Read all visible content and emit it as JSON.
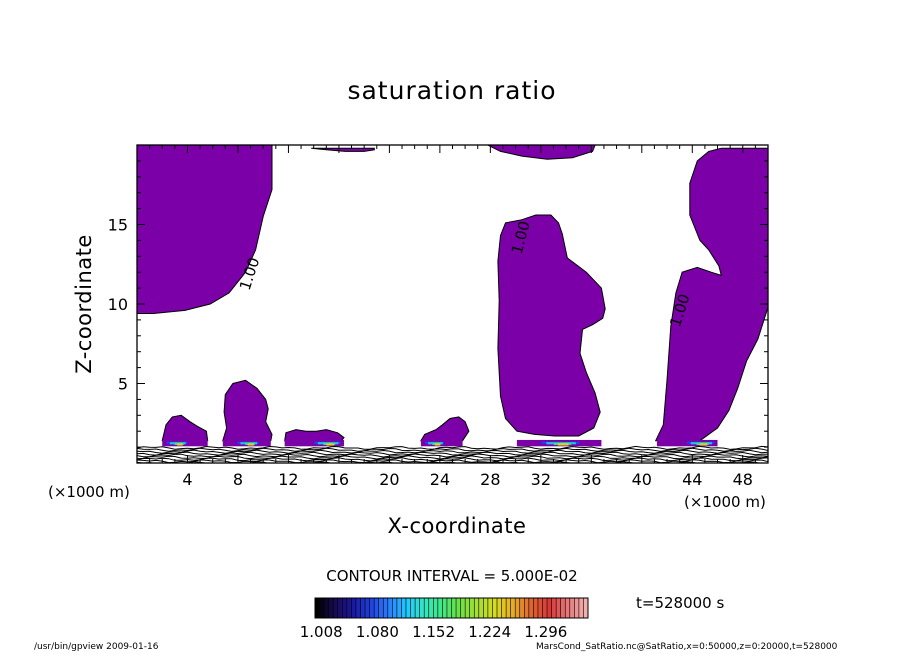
{
  "chart_data": {
    "type": "contour",
    "title": "saturation ratio",
    "xlabel": "X-coordinate",
    "ylabel": "Z-coordinate",
    "x_unit_label": "(×1000 m)",
    "x_range": [
      0,
      50
    ],
    "y_range": [
      0,
      20
    ],
    "x_ticks": [
      4,
      8,
      12,
      16,
      20,
      24,
      28,
      32,
      36,
      40,
      44,
      48
    ],
    "y_ticks": [
      5,
      10,
      15
    ],
    "contour_interval_text": "CONTOUR INTERVAL = 5.000E-02",
    "contour_labels": [
      "1.00"
    ],
    "fill_color": "#7b00a8",
    "saturated_regions": [
      {
        "name": "upper-left",
        "points": [
          [
            0,
            20
          ],
          [
            10.7,
            20
          ],
          [
            10.7,
            17.2
          ],
          [
            10.0,
            15.5
          ],
          [
            9.4,
            13.4
          ],
          [
            8.6,
            12.0
          ],
          [
            7.3,
            10.7
          ],
          [
            5.8,
            10.0
          ],
          [
            3.8,
            9.6
          ],
          [
            1.3,
            9.4
          ],
          [
            0,
            9.4
          ]
        ]
      },
      {
        "name": "central-column",
        "points": [
          [
            29.2,
            15.1
          ],
          [
            30.5,
            15.3
          ],
          [
            31.6,
            15.6
          ],
          [
            32.8,
            15.6
          ],
          [
            33.4,
            15.1
          ],
          [
            33.7,
            14.4
          ],
          [
            34.1,
            12.9
          ],
          [
            35.6,
            12.0
          ],
          [
            36.8,
            11.0
          ],
          [
            37.1,
            9.7
          ],
          [
            36.9,
            9.1
          ],
          [
            36.1,
            8.7
          ],
          [
            35.3,
            8.4
          ],
          [
            35.1,
            6.9
          ],
          [
            35.6,
            5.7
          ],
          [
            36.3,
            4.4
          ],
          [
            36.7,
            3.2
          ],
          [
            36.2,
            2.2
          ],
          [
            35.0,
            1.7
          ],
          [
            33.1,
            1.7
          ],
          [
            31.5,
            1.8
          ],
          [
            30.1,
            2.0
          ],
          [
            29.2,
            2.8
          ],
          [
            28.8,
            4.2
          ],
          [
            28.6,
            7.2
          ],
          [
            28.7,
            10.2
          ],
          [
            28.6,
            12.7
          ],
          [
            28.8,
            14.3
          ]
        ]
      },
      {
        "name": "right-column",
        "points": [
          [
            41.1,
            1.4
          ],
          [
            41.7,
            2.4
          ],
          [
            42.0,
            5.2
          ],
          [
            42.3,
            8.6
          ],
          [
            42.7,
            10.7
          ],
          [
            43.2,
            12.0
          ],
          [
            44.4,
            12.3
          ],
          [
            45.5,
            12.0
          ],
          [
            46.3,
            11.8
          ],
          [
            46.1,
            12.4
          ],
          [
            45.3,
            13.4
          ],
          [
            44.6,
            14.0
          ],
          [
            43.8,
            15.6
          ],
          [
            43.8,
            17.6
          ],
          [
            44.4,
            19.0
          ],
          [
            45.3,
            19.6
          ],
          [
            46.3,
            19.8
          ],
          [
            50,
            19.8
          ],
          [
            50,
            9.8
          ],
          [
            49.2,
            7.8
          ],
          [
            48.3,
            6.4
          ],
          [
            47.6,
            4.7
          ],
          [
            46.9,
            3.3
          ],
          [
            46.0,
            2.2
          ],
          [
            44.6,
            1.4
          ]
        ]
      },
      {
        "name": "bump-left",
        "points": [
          [
            2.0,
            1.4
          ],
          [
            2.3,
            2.4
          ],
          [
            2.8,
            2.9
          ],
          [
            3.5,
            3.0
          ],
          [
            4.2,
            2.6
          ],
          [
            4.8,
            2.3
          ],
          [
            5.5,
            2.0
          ],
          [
            5.6,
            1.4
          ]
        ]
      },
      {
        "name": "bubble-8",
        "points": [
          [
            6.8,
            1.4
          ],
          [
            7.1,
            2.2
          ],
          [
            6.9,
            3.2
          ],
          [
            7.0,
            4.3
          ],
          [
            7.6,
            5.0
          ],
          [
            8.6,
            5.2
          ],
          [
            9.5,
            4.7
          ],
          [
            10.2,
            4.0
          ],
          [
            10.4,
            3.4
          ],
          [
            10.2,
            2.6
          ],
          [
            10.7,
            1.8
          ],
          [
            10.6,
            1.4
          ]
        ]
      },
      {
        "name": "bump-12",
        "points": [
          [
            11.7,
            1.4
          ],
          [
            11.8,
            1.9
          ],
          [
            12.6,
            2.1
          ],
          [
            13.4,
            2.0
          ],
          [
            14.2,
            2.0
          ],
          [
            15.0,
            2.1
          ],
          [
            15.9,
            1.9
          ],
          [
            16.4,
            1.6
          ],
          [
            16.2,
            1.4
          ]
        ]
      },
      {
        "name": "bump-25",
        "points": [
          [
            22.5,
            1.4
          ],
          [
            22.8,
            1.8
          ],
          [
            23.7,
            2.1
          ],
          [
            24.2,
            2.4
          ],
          [
            24.8,
            2.8
          ],
          [
            25.5,
            2.9
          ],
          [
            26.0,
            2.6
          ],
          [
            26.3,
            2.0
          ],
          [
            25.8,
            1.4
          ]
        ]
      },
      {
        "name": "top-sliver-15",
        "points": [
          [
            13.8,
            19.8
          ],
          [
            15.0,
            19.7
          ],
          [
            16.5,
            19.6
          ],
          [
            18.0,
            19.6
          ],
          [
            18.8,
            19.7
          ],
          [
            18.8,
            19.8
          ]
        ]
      },
      {
        "name": "top-sliver-31",
        "points": [
          [
            27.8,
            20
          ],
          [
            28.8,
            19.6
          ],
          [
            30.5,
            19.3
          ],
          [
            32.5,
            19.1
          ],
          [
            34.5,
            19.2
          ],
          [
            36.1,
            19.6
          ],
          [
            36.3,
            20
          ]
        ]
      }
    ],
    "colorbar": {
      "tick_labels": [
        "1.008",
        "1.080",
        "1.152",
        "1.224",
        "1.296"
      ],
      "tick_values": [
        1.008,
        1.08,
        1.152,
        1.224,
        1.296
      ],
      "range": [
        1.0,
        1.35
      ],
      "colors": [
        "#000000",
        "#1a0a55",
        "#1a1aa0",
        "#2040e0",
        "#2a80ff",
        "#20c8ff",
        "#30e8c0",
        "#40e880",
        "#70e040",
        "#a8e030",
        "#d8d820",
        "#e8a828",
        "#e06030",
        "#d83838",
        "#e87878",
        "#f0b0b0"
      ]
    },
    "time_label": "t=528000 s"
  },
  "footer": {
    "left": "/usr/bin/gpview 2009-01-16",
    "right": "MarsCond_SatRatio.nc@SatRatio,x=0:50000,z=0:20000,t=528000"
  }
}
